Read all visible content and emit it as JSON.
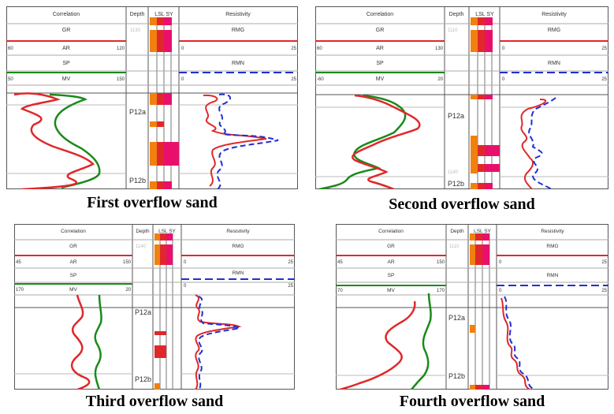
{
  "panels": [
    {
      "caption": "First overflow sand",
      "headers": {
        "correlation": "Correlation",
        "depth": "Depth",
        "lith": "LSL SY",
        "resistivity": "Resistivity"
      },
      "logs": {
        "gr": "GR",
        "ar": "AR",
        "sp": "SP",
        "mv": "MV",
        "rmg": "RMG",
        "rmn": "RMN"
      },
      "scales": {
        "ar_min": "60",
        "ar_max": "120",
        "res_min": "0",
        "res_max": "25",
        "mv_min": "50",
        "mv_max": "150",
        "res2_min": "0",
        "res2_max": "25"
      },
      "depth_top": "1130",
      "markers": [
        "P12a",
        "P12b"
      ]
    },
    {
      "caption": "Second overflow sand",
      "headers": {
        "correlation": "Correlation",
        "depth": "Depth",
        "lith": "LSL SY",
        "resistivity": "Resistivity"
      },
      "logs": {
        "gr": "GR",
        "ar": "AR",
        "sp": "SP",
        "mv": "MV",
        "rmg": "RMG",
        "rmn": "RMN"
      },
      "scales": {
        "ar_min": "60",
        "ar_max": "130",
        "res_min": "0",
        "res_max": "25",
        "mv_min": "-60",
        "mv_max": "20",
        "res2_min": "0",
        "res2_max": "25"
      },
      "depth_top": "1110",
      "depth_mid": "1140",
      "markers": [
        "P12a",
        "P12b"
      ]
    },
    {
      "caption": "Third overflow sand",
      "headers": {
        "correlation": "Correlation",
        "depth": "Depth",
        "lith": "LSL SY",
        "resistivity": "Resistivity"
      },
      "logs": {
        "gr": "GR",
        "ar": "AR",
        "sp": "SP",
        "mv": "MV",
        "rmg": "RMG",
        "rmn": "RMN"
      },
      "scales": {
        "ar_min": "45",
        "ar_max": "150",
        "res_min": "0",
        "res_max": "25",
        "mv_min": "170",
        "mv_max": "20",
        "res2_min": "0",
        "res2_max": "25"
      },
      "depth_top": "1140",
      "markers": [
        "P12a",
        "P12b"
      ]
    },
    {
      "caption": "Fourth overflow sand",
      "headers": {
        "correlation": "Correlation",
        "depth": "Depth",
        "lith": "LSL SY",
        "resistivity": "Resistivity"
      },
      "logs": {
        "gr": "GR",
        "ar": "AR",
        "sp": "SP",
        "mv": "MV",
        "rmg": "RMG",
        "rmn": "RMN"
      },
      "scales": {
        "ar_min": "45",
        "ar_max": "150",
        "res_min": "0",
        "res_max": "25",
        "mv_min": "70",
        "mv_max": "170",
        "res2_min": "0",
        "res2_max": "25"
      },
      "depth_top": "1110",
      "markers": [
        "P12a",
        "P12b"
      ]
    }
  ],
  "colors": {
    "red": "#e0282a",
    "green": "#1a8a1a",
    "blue": "#2030d0",
    "orange": "#f08010",
    "magenta": "#e8106a",
    "grid": "#9a9a9a"
  }
}
